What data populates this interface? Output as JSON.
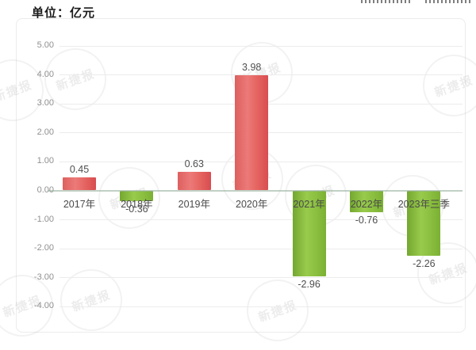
{
  "title": "单位：亿元",
  "watermark": {
    "text": "新捷报"
  },
  "chart_data": {
    "type": "bar",
    "title": "单位：亿元",
    "xlabel": "",
    "ylabel": "亿元",
    "categories": [
      "2017年",
      "2018年",
      "2019年",
      "2020年",
      "2021年",
      "2022年",
      "2023年三季"
    ],
    "values": [
      0.45,
      -0.36,
      0.63,
      3.98,
      -2.96,
      -0.76,
      -2.26
    ],
    "value_labels": [
      "0.45",
      "-0.36",
      "0.63",
      "3.98",
      "-2.96",
      "-0.76",
      "-2.26"
    ],
    "yticks": [
      "5.00",
      "4.00",
      "3.00",
      "2.00",
      "1.00",
      "0.00",
      "-1.00",
      "-2.00",
      "-3.00",
      "-4.00"
    ],
    "ylim": [
      -4.5,
      5.4
    ],
    "grid": true,
    "legend": false,
    "colors": {
      "positive_bar": "#e2605f",
      "negative_bar": "#8abc3e",
      "zero_line": "#98b09e",
      "gridline": "#ececec",
      "tick_text": "#909090",
      "label_text": "#4a4a4a"
    }
  }
}
